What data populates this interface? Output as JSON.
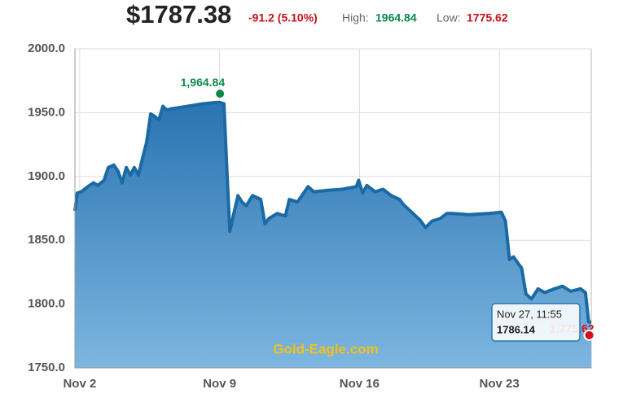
{
  "chart_data": {
    "type": "area",
    "title": "$1787.38",
    "change": "-91.2 (5.10%)",
    "high_label": "High:",
    "high_value": "1964.84",
    "low_label": "Low:",
    "low_value": "1775.62",
    "watermark": "Gold-Eagle.com",
    "xlim": [
      1.76,
      27.6
    ],
    "xticks": [
      {
        "value": 2,
        "label": "Nov 2"
      },
      {
        "value": 9,
        "label": "Nov 9"
      },
      {
        "value": 16,
        "label": "Nov 16"
      },
      {
        "value": 23,
        "label": "Nov 23"
      }
    ],
    "ylim": [
      1750,
      2000
    ],
    "yticks": [
      {
        "value": 1750,
        "label": "1750.0"
      },
      {
        "value": 1800,
        "label": "1800.0"
      },
      {
        "value": 1850,
        "label": "1850.0"
      },
      {
        "value": 1900,
        "label": "1900.0"
      },
      {
        "value": 1950,
        "label": "1950.0"
      },
      {
        "value": 2000,
        "label": "2000.0"
      }
    ],
    "grid": true,
    "series": [
      {
        "color": "#1a6aa6",
        "x": [
          1.76,
          1.88,
          2.08,
          2.41,
          2.69,
          2.9,
          3.22,
          3.43,
          3.71,
          3.92,
          4.12,
          4.33,
          4.53,
          4.73,
          4.94,
          5.14,
          5.35,
          5.55,
          5.76,
          5.96,
          6.16,
          6.37,
          6.57,
          7.39,
          8.2,
          8.82,
          9.02,
          9.22,
          9.35,
          9.51,
          9.71,
          9.92,
          10.12,
          10.33,
          10.65,
          11.06,
          11.27,
          11.47,
          11.88,
          12.29,
          12.49,
          12.9,
          13.43,
          13.71,
          14.33,
          15.14,
          15.84,
          15.96,
          16.16,
          16.37,
          16.78,
          17.18,
          17.59,
          18,
          18.2,
          18.61,
          19.02,
          19.31,
          19.63,
          20.04,
          20.37,
          20.65,
          21.47,
          22.49,
          23.1,
          23.31,
          23.51,
          23.71,
          24.12,
          24.33,
          24.61,
          24.94,
          25.27,
          25.76,
          26.16,
          26.57,
          27.06,
          27.31,
          27.47,
          27.6
        ],
        "values": [
          1873,
          1887,
          1888,
          1892,
          1895,
          1893,
          1897,
          1907,
          1909,
          1904,
          1895,
          1907,
          1901,
          1907,
          1901,
          1914,
          1927,
          1949,
          1947,
          1944,
          1955,
          1952,
          1953,
          1955,
          1957,
          1958,
          1958,
          1957,
          1911,
          1857,
          1871,
          1885,
          1880,
          1877,
          1885,
          1882,
          1863,
          1867,
          1871,
          1869,
          1882,
          1880,
          1892,
          1888,
          1889,
          1890,
          1892,
          1897,
          1887,
          1893,
          1888,
          1890,
          1885,
          1882,
          1878,
          1872,
          1866,
          1860,
          1865,
          1867,
          1871,
          1871,
          1870,
          1871,
          1872,
          1865,
          1835,
          1837,
          1828,
          1808,
          1804,
          1812,
          1809,
          1812,
          1814,
          1810,
          1812,
          1809,
          1786,
          1786
        ]
      }
    ],
    "high_point": {
      "x": 9.02,
      "value": 1964.84,
      "label": "1,964.84",
      "color": "#0a8a4a"
    },
    "low_point": {
      "x": 27.5,
      "value": 1775.62,
      "label": "1,775.62",
      "color": "#d0101a"
    },
    "tooltip": {
      "date": "Nov 27, 11:55",
      "value": "1786.14"
    }
  }
}
